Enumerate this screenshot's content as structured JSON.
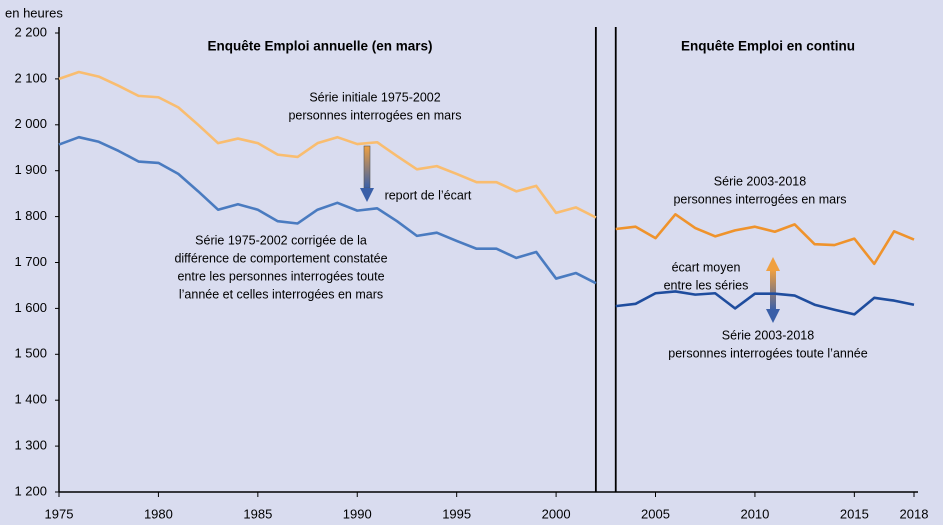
{
  "chart_data": {
    "type": "line",
    "y_unit": "en heures",
    "section_titles": [
      "Enquête Emploi annuelle (en mars)",
      "Enquête Emploi en continu"
    ],
    "annotations": {
      "initial": [
        "Série initiale 1975-2002",
        "personnes interrogées en mars"
      ],
      "report": "report de l’écart",
      "corrected": [
        "Série 1975-2002 corrigée de la",
        "différence de comportement constatée",
        "entre les personnes interrogées toute",
        "l’année et celles interrogées en mars"
      ],
      "new_march": [
        "Série 2003-2018",
        "personnes interrogées en mars"
      ],
      "gap": [
        "écart moyen",
        "entre les séries"
      ],
      "new_year": [
        "Série 2003-2018",
        "personnes interrogées toute l’année"
      ]
    },
    "x": [
      1975,
      1976,
      1977,
      1978,
      1979,
      1980,
      1981,
      1982,
      1983,
      1984,
      1985,
      1986,
      1987,
      1988,
      1989,
      1990,
      1991,
      1992,
      1993,
      1994,
      1995,
      1996,
      1997,
      1998,
      1999,
      2000,
      2001,
      2002,
      2003,
      2004,
      2005,
      2006,
      2007,
      2008,
      2009,
      2010,
      2011,
      2012,
      2013,
      2014,
      2015,
      2016,
      2017,
      2018
    ],
    "series": [
      {
        "color": "#f9bd70",
        "values": [
          2100,
          2115,
          2105,
          2085,
          2063,
          2060,
          2038,
          2000,
          1960,
          1970,
          1960,
          1935,
          1930,
          1960,
          1973,
          1958,
          1962,
          1932,
          1903,
          1910,
          1893,
          1875,
          1875,
          1855,
          1867,
          1808,
          1820,
          1798,
          null,
          null,
          null,
          null,
          null,
          null,
          null,
          null,
          null,
          null,
          null,
          null,
          null,
          null,
          null,
          null
        ]
      },
      {
        "color": "#4a7bc0",
        "values": [
          1957,
          1973,
          1963,
          1943,
          1920,
          1917,
          1893,
          1855,
          1815,
          1827,
          1815,
          1790,
          1785,
          1815,
          1830,
          1813,
          1818,
          1790,
          1758,
          1765,
          1747,
          1730,
          1730,
          1710,
          1723,
          1665,
          1677,
          1655,
          null,
          null,
          null,
          null,
          null,
          null,
          null,
          null,
          null,
          null,
          null,
          null,
          null,
          null,
          null,
          null
        ]
      },
      {
        "color": "#ef932c",
        "values": [
          null,
          null,
          null,
          null,
          null,
          null,
          null,
          null,
          null,
          null,
          null,
          null,
          null,
          null,
          null,
          null,
          null,
          null,
          null,
          null,
          null,
          null,
          null,
          null,
          null,
          null,
          null,
          null,
          1773,
          1778,
          1753,
          1805,
          1775,
          1757,
          1770,
          1778,
          1767,
          1783,
          1740,
          1738,
          1752,
          1697,
          1768,
          1750
        ]
      },
      {
        "color": "#1f4d9e",
        "values": [
          null,
          null,
          null,
          null,
          null,
          null,
          null,
          null,
          null,
          null,
          null,
          null,
          null,
          null,
          null,
          null,
          null,
          null,
          null,
          null,
          null,
          null,
          null,
          null,
          null,
          null,
          null,
          null,
          1605,
          1610,
          1633,
          1637,
          1630,
          1633,
          1600,
          1632,
          1632,
          1628,
          1608,
          1597,
          1587,
          1623,
          1617,
          1608
        ]
      }
    ],
    "breaks": [
      2002,
      2003
    ],
    "xlim": [
      1975,
      2018
    ],
    "xticks": [
      1975,
      1980,
      1985,
      1990,
      1995,
      2000,
      2005,
      2010,
      2015,
      2018
    ],
    "ylim": [
      1200,
      2200
    ],
    "yticks": [
      {
        "value": 1200,
        "label": "1 200"
      },
      {
        "value": 1300,
        "label": "1 300"
      },
      {
        "value": 1400,
        "label": "1 400"
      },
      {
        "value": 1500,
        "label": "1 500"
      },
      {
        "value": 1600,
        "label": "1 600"
      },
      {
        "value": 1700,
        "label": "1 700"
      },
      {
        "value": 1800,
        "label": "1 800"
      },
      {
        "value": 1900,
        "label": "1 900"
      },
      {
        "value": 2000,
        "label": "2 000"
      },
      {
        "value": 2100,
        "label": "2 100"
      },
      {
        "value": 2200,
        "label": "2 200"
      }
    ]
  }
}
